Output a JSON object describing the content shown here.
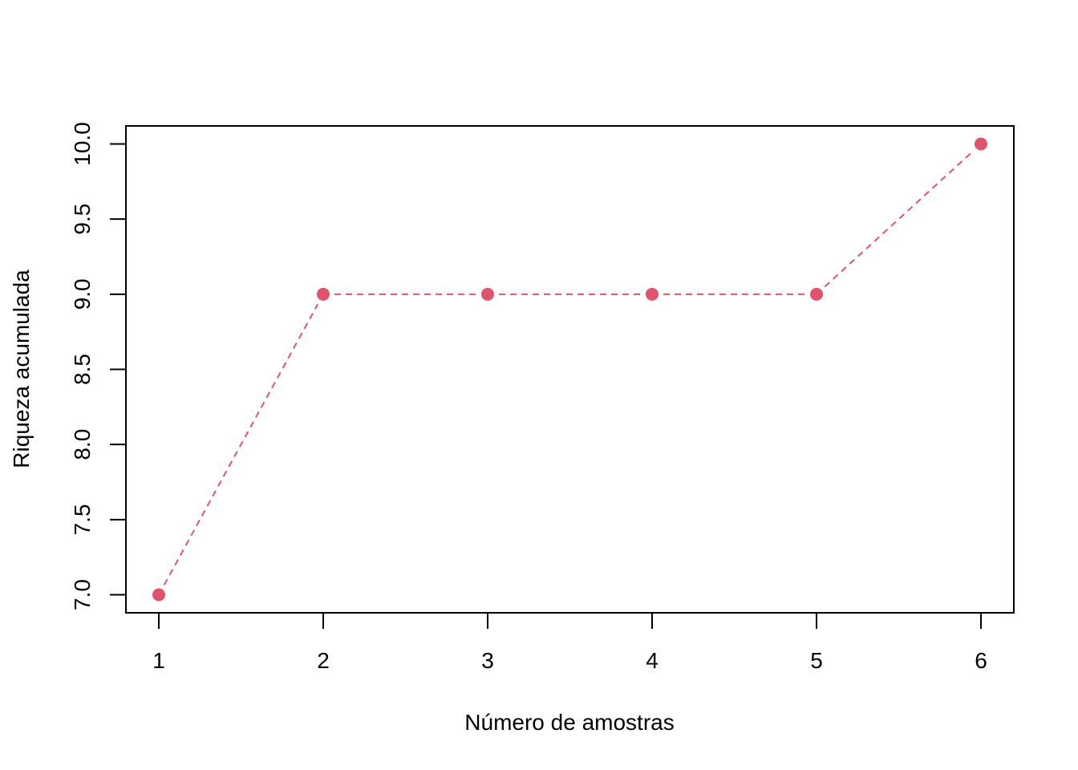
{
  "chart_data": {
    "type": "line",
    "title": "",
    "xlabel": "Número de amostras",
    "ylabel": "Riqueza acumulada",
    "x": [
      1,
      2,
      3,
      4,
      5,
      6
    ],
    "series": [
      {
        "values": [
          7,
          9,
          9,
          9,
          9,
          10
        ],
        "color": "#DF536B",
        "line_style": "dashed",
        "marker": "filled-circle"
      }
    ],
    "xlim": [
      0.8,
      6.2
    ],
    "ylim": [
      6.88,
      10.12
    ],
    "x_ticks": [
      1,
      2,
      3,
      4,
      5,
      6
    ],
    "x_tick_labels": [
      "1",
      "2",
      "3",
      "4",
      "5",
      "6"
    ],
    "y_ticks": [
      7.0,
      7.5,
      8.0,
      8.5,
      9.0,
      9.5,
      10.0
    ],
    "y_tick_labels": [
      "7.0",
      "7.5",
      "8.0",
      "8.5",
      "9.0",
      "9.5",
      "10.0"
    ],
    "grid": false,
    "legend": "none"
  }
}
